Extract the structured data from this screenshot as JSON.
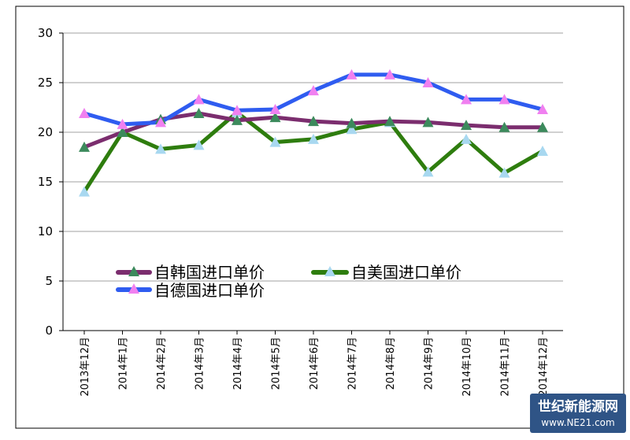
{
  "chart_data": {
    "type": "line",
    "title": "",
    "xlabel": "",
    "ylabel": "",
    "ylim": [
      0,
      30
    ],
    "yticks": [
      0,
      5,
      10,
      15,
      20,
      25,
      30
    ],
    "grid": true,
    "legend_position": "center",
    "categories": [
      "2013年12月",
      "2014年1月",
      "2014年2月",
      "2014年3月",
      "2014年4月",
      "2014年5月",
      "2014年6月",
      "2014年7月",
      "2014年8月",
      "2014年9月",
      "2014年10月",
      "2014年11月",
      "2014年12月"
    ],
    "series": [
      {
        "name": "自韩国进口单价",
        "color": "#7b2d6e",
        "marker": "triangle",
        "marker_color": "#3c8a5c",
        "values": [
          18.5,
          20.0,
          21.3,
          21.9,
          21.2,
          21.5,
          21.1,
          20.9,
          21.1,
          21.0,
          20.7,
          20.5,
          20.5
        ]
      },
      {
        "name": "自美国进口单价",
        "color": "#2e7d0e",
        "marker": "triangle",
        "marker_color": "#a8d8f0",
        "values": [
          14.0,
          20.0,
          18.3,
          18.7,
          22.0,
          19.0,
          19.3,
          20.3,
          21.0,
          16.0,
          19.3,
          15.9,
          18.1
        ]
      },
      {
        "name": "自德国进口单价",
        "color": "#2f5cf0",
        "marker": "triangle",
        "marker_color": "#f080f0",
        "values": [
          21.9,
          20.8,
          21.0,
          23.3,
          22.2,
          22.3,
          24.2,
          25.8,
          25.8,
          25.0,
          23.3,
          23.3,
          22.3
        ]
      }
    ]
  },
  "watermark": {
    "title": "世纪新能源网",
    "url": "www.NE21.com"
  }
}
